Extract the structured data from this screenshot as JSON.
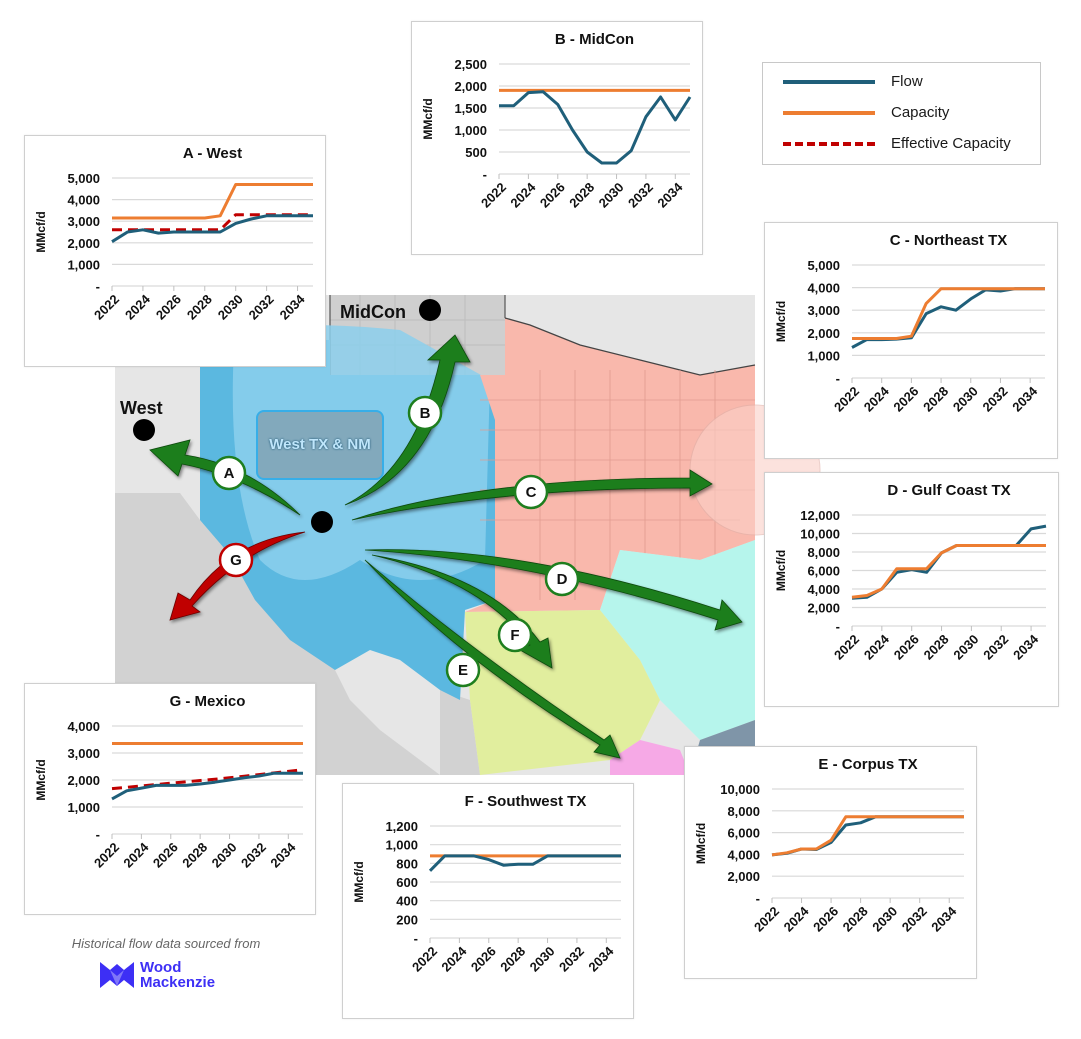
{
  "legend": {
    "items": [
      {
        "label": "Flow",
        "color": "#1f5f7a",
        "style": "solid"
      },
      {
        "label": "Capacity",
        "color": "#ed7d31",
        "style": "solid"
      },
      {
        "label": "Effective Capacity",
        "color": "#c00000",
        "style": "dashed"
      }
    ]
  },
  "map": {
    "labels": {
      "midcon": "MidCon",
      "west": "West",
      "hub": "West TX & NM"
    },
    "routes": [
      {
        "id": "A",
        "dest": "West",
        "color": "#1e7e1e"
      },
      {
        "id": "B",
        "dest": "MidCon",
        "color": "#1e7e1e"
      },
      {
        "id": "C",
        "dest": "Northeast TX",
        "color": "#1e7e1e"
      },
      {
        "id": "D",
        "dest": "Gulf Coast TX",
        "color": "#1e7e1e"
      },
      {
        "id": "E",
        "dest": "Corpus TX",
        "color": "#1e7e1e"
      },
      {
        "id": "F",
        "dest": "Southwest TX",
        "color": "#1e7e1e"
      },
      {
        "id": "G",
        "dest": "Mexico",
        "color": "#c00000"
      }
    ],
    "region_colors": {
      "permian": "#5bb8e0",
      "permian_light": "#8ccfec",
      "northeast": "#f9b8ac",
      "gulf": "#b6f5ec",
      "southwest": "#e1ee9e",
      "corpus": "#f6a9e6",
      "other": "#d3d3d3",
      "outside": "#e6e6e6",
      "water": "#7f95a8"
    }
  },
  "credit": {
    "text": "Historical flow data sourced from",
    "brand_line1": "Wood",
    "brand_line2": "Mackenzie",
    "brand_color": "#3d2ff5"
  },
  "chart_data": [
    {
      "id": "A",
      "type": "line",
      "title": "A - West",
      "ylabel": "MMcf/d",
      "xlabel": "",
      "x": [
        2022,
        2023,
        2024,
        2025,
        2026,
        2027,
        2028,
        2029,
        2030,
        2031,
        2032,
        2033,
        2034,
        2035
      ],
      "xticks": [
        "2022",
        "2024",
        "2026",
        "2028",
        "2030",
        "2032",
        "2034"
      ],
      "yticks": [
        "-",
        "1,000",
        "2,000",
        "3,000",
        "4,000",
        "5,000"
      ],
      "ylim": [
        0,
        5000
      ],
      "grid": true,
      "series": [
        {
          "name": "Flow",
          "values": [
            2050,
            2500,
            2600,
            2450,
            2500,
            2500,
            2500,
            2500,
            2900,
            3100,
            3250,
            3250,
            3250,
            3250
          ]
        },
        {
          "name": "Capacity",
          "values": [
            3150,
            3150,
            3150,
            3150,
            3150,
            3150,
            3150,
            3250,
            4700,
            4700,
            4700,
            4700,
            4700,
            4700
          ]
        },
        {
          "name": "Effective Capacity",
          "values": [
            2600,
            2600,
            2600,
            2600,
            2600,
            2600,
            2600,
            2600,
            3300,
            3300,
            3300,
            3300,
            3300,
            3300
          ]
        }
      ]
    },
    {
      "id": "B",
      "type": "line",
      "title": "B - MidCon",
      "ylabel": "MMcf/d",
      "xlabel": "",
      "x": [
        2022,
        2023,
        2024,
        2025,
        2026,
        2027,
        2028,
        2029,
        2030,
        2031,
        2032,
        2033,
        2034,
        2035
      ],
      "xticks": [
        "2022",
        "2024",
        "2026",
        "2028",
        "2030",
        "2032",
        "2034"
      ],
      "yticks": [
        "-",
        "500",
        "1,000",
        "1,500",
        "2,000",
        "2,500"
      ],
      "ylim": [
        0,
        2500
      ],
      "grid": true,
      "series": [
        {
          "name": "Flow",
          "values": [
            1550,
            1550,
            1850,
            1870,
            1580,
            1000,
            500,
            250,
            250,
            530,
            1300,
            1750,
            1230,
            1750
          ]
        },
        {
          "name": "Capacity",
          "values": [
            1900,
            1900,
            1900,
            1900,
            1900,
            1900,
            1900,
            1900,
            1900,
            1900,
            1900,
            1900,
            1900,
            1900
          ]
        }
      ]
    },
    {
      "id": "C",
      "type": "line",
      "title": "C - Northeast TX",
      "ylabel": "MMcf/d",
      "xlabel": "",
      "x": [
        2022,
        2023,
        2024,
        2025,
        2026,
        2027,
        2028,
        2029,
        2030,
        2031,
        2032,
        2033,
        2034,
        2035
      ],
      "xticks": [
        "2022",
        "2024",
        "2026",
        "2028",
        "2030",
        "2032",
        "2034"
      ],
      "yticks": [
        "-",
        "1,000",
        "2,000",
        "3,000",
        "4,000",
        "5,000"
      ],
      "ylim": [
        0,
        5000
      ],
      "grid": true,
      "series": [
        {
          "name": "Flow",
          "values": [
            1350,
            1700,
            1700,
            1720,
            1780,
            2850,
            3150,
            3000,
            3500,
            3900,
            3850,
            3950,
            3950,
            3950
          ]
        },
        {
          "name": "Capacity",
          "values": [
            1750,
            1750,
            1750,
            1750,
            1850,
            3300,
            3950,
            3950,
            3950,
            3950,
            3950,
            3950,
            3950,
            3950
          ]
        }
      ]
    },
    {
      "id": "D",
      "type": "line",
      "title": "D - Gulf Coast TX",
      "ylabel": "MMcf/d",
      "xlabel": "",
      "x": [
        2022,
        2023,
        2024,
        2025,
        2026,
        2027,
        2028,
        2029,
        2030,
        2031,
        2032,
        2033,
        2034,
        2035
      ],
      "xticks": [
        "2022",
        "2024",
        "2026",
        "2028",
        "2030",
        "2032",
        "2034"
      ],
      "yticks": [
        "-",
        "2,000",
        "4,000",
        "6,000",
        "8,000",
        "10,000",
        "12,000"
      ],
      "ylim": [
        0,
        12000
      ],
      "grid": true,
      "series": [
        {
          "name": "Flow",
          "values": [
            3000,
            3100,
            4000,
            5800,
            6100,
            5800,
            7900,
            8700,
            8700,
            8700,
            8700,
            8700,
            10500,
            10800
          ]
        },
        {
          "name": "Capacity",
          "values": [
            3100,
            3300,
            4000,
            6200,
            6200,
            6200,
            7900,
            8700,
            8700,
            8700,
            8700,
            8700,
            8700,
            8700
          ]
        }
      ]
    },
    {
      "id": "E",
      "type": "line",
      "title": "E - Corpus TX",
      "ylabel": "MMcf/d",
      "xlabel": "",
      "x": [
        2022,
        2023,
        2024,
        2025,
        2026,
        2027,
        2028,
        2029,
        2030,
        2031,
        2032,
        2033,
        2034,
        2035
      ],
      "xticks": [
        "2022",
        "2024",
        "2026",
        "2028",
        "2030",
        "2032",
        "2034"
      ],
      "yticks": [
        "-",
        "2,000",
        "4,000",
        "6,000",
        "8,000",
        "10,000"
      ],
      "ylim": [
        0,
        10000
      ],
      "grid": true,
      "series": [
        {
          "name": "Flow",
          "values": [
            3950,
            4100,
            4500,
            4450,
            5100,
            6700,
            6900,
            7450,
            7450,
            7450,
            7450,
            7450,
            7450,
            7450
          ]
        },
        {
          "name": "Capacity",
          "values": [
            3950,
            4150,
            4500,
            4500,
            5300,
            7450,
            7450,
            7450,
            7450,
            7450,
            7450,
            7450,
            7450,
            7450
          ]
        }
      ]
    },
    {
      "id": "F",
      "type": "line",
      "title": "F - Southwest TX",
      "ylabel": "MMcf/d",
      "xlabel": "",
      "x": [
        2022,
        2023,
        2024,
        2025,
        2026,
        2027,
        2028,
        2029,
        2030,
        2031,
        2032,
        2033,
        2034,
        2035
      ],
      "xticks": [
        "2022",
        "2024",
        "2026",
        "2028",
        "2030",
        "2032",
        "2034"
      ],
      "yticks": [
        "-",
        "200",
        "400",
        "600",
        "800",
        "1,000",
        "1,200"
      ],
      "ylim": [
        0,
        1200
      ],
      "grid": true,
      "series": [
        {
          "name": "Flow",
          "values": [
            720,
            880,
            880,
            880,
            840,
            780,
            790,
            790,
            880,
            880,
            880,
            880,
            880,
            880
          ]
        },
        {
          "name": "Capacity",
          "values": [
            880,
            880,
            880,
            880,
            880,
            880,
            880,
            880,
            880,
            880,
            880,
            880,
            880,
            880
          ]
        }
      ]
    },
    {
      "id": "G",
      "type": "line",
      "title": "G - Mexico",
      "ylabel": "MMcf/d",
      "xlabel": "",
      "x": [
        2022,
        2023,
        2024,
        2025,
        2026,
        2027,
        2028,
        2029,
        2030,
        2031,
        2032,
        2033,
        2034,
        2035
      ],
      "xticks": [
        "2022",
        "2024",
        "2026",
        "2028",
        "2030",
        "2032",
        "2034"
      ],
      "yticks": [
        "-",
        "1,000",
        "2,000",
        "3,000",
        "4,000"
      ],
      "ylim": [
        0,
        4000
      ],
      "grid": true,
      "series": [
        {
          "name": "Flow",
          "values": [
            1300,
            1600,
            1700,
            1800,
            1800,
            1800,
            1850,
            1920,
            2000,
            2080,
            2150,
            2250,
            2250,
            2250
          ]
        },
        {
          "name": "Capacity",
          "values": [
            3350,
            3350,
            3350,
            3350,
            3350,
            3350,
            3350,
            3350,
            3350,
            3350,
            3350,
            3350,
            3350,
            3350
          ]
        },
        {
          "name": "Effective Capacity",
          "values": [
            1680,
            1730,
            1780,
            1830,
            1880,
            1930,
            1980,
            2030,
            2080,
            2140,
            2200,
            2260,
            2320,
            2380
          ]
        }
      ]
    }
  ]
}
